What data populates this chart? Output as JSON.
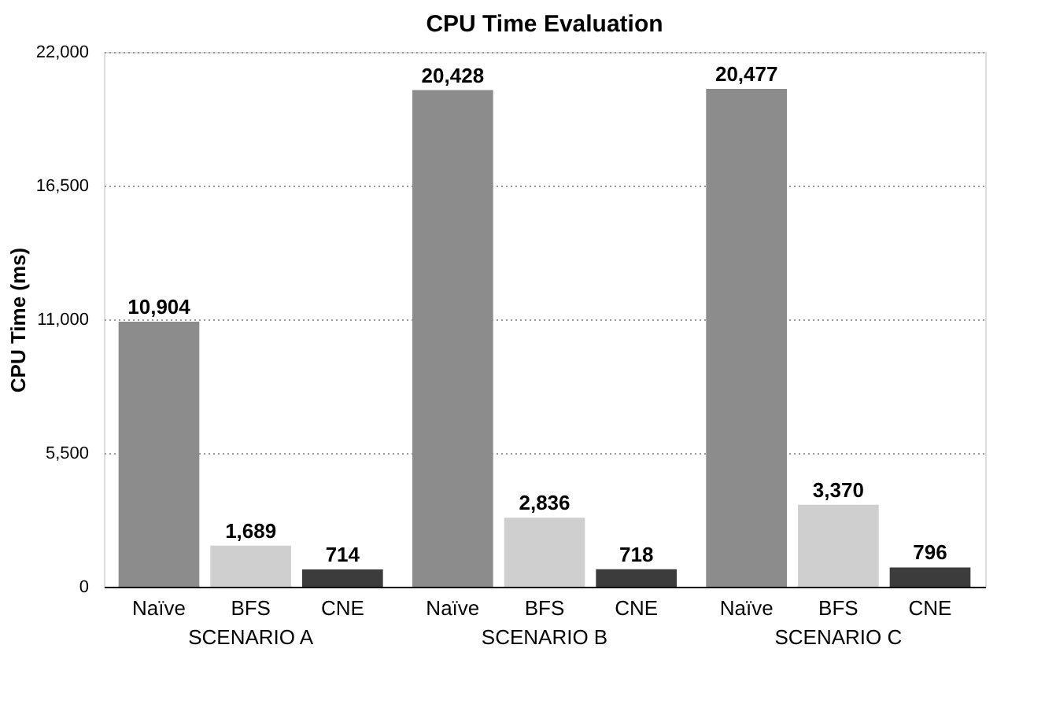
{
  "chart_data": {
    "type": "bar",
    "title": "CPU Time Evaluation",
    "ylabel": "CPU Time (ms)",
    "categories": [
      "SCENARIO A",
      "SCENARIO B",
      "SCENARIO C"
    ],
    "series": [
      {
        "name": "Naïve",
        "color": "#8c8c8c",
        "values": [
          10904,
          20428,
          20477
        ],
        "value_labels": [
          "10,904",
          "20,428",
          "20,477"
        ]
      },
      {
        "name": "BFS",
        "color": "#cfcfcf",
        "values": [
          1689,
          2836,
          3370
        ],
        "value_labels": [
          "1,689",
          "2,836",
          "3,370"
        ]
      },
      {
        "name": "CNE",
        "color": "#3c3c3c",
        "values": [
          714,
          718,
          796
        ],
        "value_labels": [
          "714",
          "718",
          "796"
        ]
      }
    ],
    "ylim": [
      0,
      22000
    ],
    "yticks": [
      0,
      {
        "value": 5500,
        "label": "5,500"
      },
      {
        "value": 11000,
        "label": "11,000"
      },
      {
        "value": 16500,
        "label": "16,500"
      },
      {
        "value": 22000,
        "label": "22,000"
      }
    ],
    "grid": "y"
  }
}
